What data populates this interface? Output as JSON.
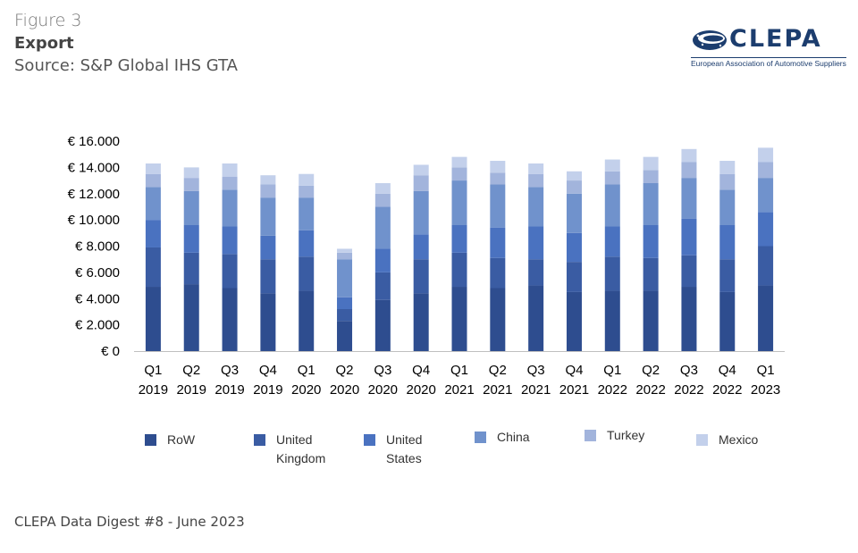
{
  "figure": {
    "label": "Figure 3",
    "title": "Export",
    "source": "Source: S&P Global IHS GTA"
  },
  "logo": {
    "name": "CLEPA",
    "tagline": "European Association of Automotive Suppliers"
  },
  "footer": "CLEPA Data Digest #8 - June 2023",
  "colors": {
    "RoW": "#2e4d8f",
    "United Kingdom": "#3a5ca3",
    "United States": "#4a72c0",
    "China": "#7092cc",
    "Turkey": "#a2b4dc",
    "Mexico": "#c3d0eb",
    "axis": "#bfbfbf"
  },
  "chart_data": {
    "type": "bar",
    "stacked": true,
    "categories": [
      [
        "Q1",
        "2019"
      ],
      [
        "Q2",
        "2019"
      ],
      [
        "Q3",
        "2019"
      ],
      [
        "Q4",
        "2019"
      ],
      [
        "Q1",
        "2020"
      ],
      [
        "Q2",
        "2020"
      ],
      [
        "Q3",
        "2020"
      ],
      [
        "Q4",
        "2020"
      ],
      [
        "Q1",
        "2021"
      ],
      [
        "Q2",
        "2021"
      ],
      [
        "Q3",
        "2021"
      ],
      [
        "Q4",
        "2021"
      ],
      [
        "Q1",
        "2022"
      ],
      [
        "Q2",
        "2022"
      ],
      [
        "Q3",
        "2022"
      ],
      [
        "Q4",
        "2022"
      ],
      [
        "Q1",
        "2023"
      ]
    ],
    "series": [
      {
        "name": "RoW",
        "legend": [
          "RoW"
        ],
        "values": [
          4900,
          5100,
          4800,
          4400,
          4600,
          2300,
          3900,
          4400,
          4900,
          4800,
          5000,
          4500,
          4600,
          4600,
          4900,
          4500,
          5000
        ]
      },
      {
        "name": "United Kingdom",
        "legend": [
          "United",
          "Kingdom"
        ],
        "values": [
          3000,
          2400,
          2600,
          2600,
          2600,
          900,
          2100,
          2600,
          2600,
          2300,
          2000,
          2300,
          2600,
          2500,
          2400,
          2500,
          3000
        ]
      },
      {
        "name": "United States",
        "legend": [
          "United",
          "States"
        ],
        "values": [
          2100,
          2100,
          2100,
          1800,
          2000,
          900,
          1800,
          1900,
          2100,
          2300,
          2500,
          2200,
          2300,
          2500,
          2800,
          2600,
          2600
        ]
      },
      {
        "name": "China",
        "legend": [
          "China"
        ],
        "values": [
          2500,
          2600,
          2800,
          2900,
          2500,
          2900,
          3200,
          3300,
          3400,
          3300,
          3000,
          3000,
          3200,
          3200,
          3100,
          2700,
          2600
        ]
      },
      {
        "name": "Turkey",
        "legend": [
          "Turkey"
        ],
        "values": [
          1000,
          1000,
          1000,
          1000,
          900,
          500,
          1000,
          1200,
          1000,
          900,
          1000,
          1000,
          1000,
          1000,
          1200,
          1200,
          1200
        ]
      },
      {
        "name": "Mexico",
        "legend": [
          "Mexico"
        ],
        "values": [
          800,
          800,
          1000,
          700,
          900,
          300,
          800,
          800,
          800,
          900,
          800,
          700,
          900,
          1000,
          1000,
          1000,
          1100
        ]
      }
    ],
    "y_ticks": [
      0,
      2000,
      4000,
      6000,
      8000,
      10000,
      12000,
      14000,
      16000
    ],
    "y_tick_labels": [
      "€ 0",
      "€ 2.000",
      "€ 4.000",
      "€ 6.000",
      "€ 8.000",
      "€ 10.000",
      "€ 12.000",
      "€ 14.000",
      "€ 16.000"
    ],
    "ylim": [
      0,
      16000
    ],
    "grid": false,
    "legend_position": "bottom"
  }
}
